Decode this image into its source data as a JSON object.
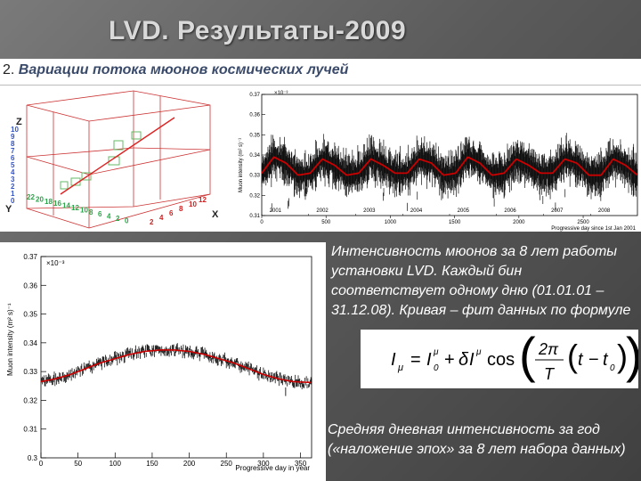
{
  "slide": {
    "title": "LVD. Результаты-2009",
    "subtitle_number": "2.",
    "subtitle_text": "Вариации потока мюонов космических лучей"
  },
  "description": {
    "paragraph1": "Интенсивность мюонов за 8 лет работы установки LVD. Каждый бин соответствует одному дню (01.01.01 – 31.12.08). Кривая – фит данных по формуле",
    "paragraph2": "Средняя дневная интенсивность за год («наложение эпох» за 8 лет набора данных)"
  },
  "formula": {
    "lhs": "I",
    "lhs_sub": "μ",
    "equals": "=",
    "i0": "I",
    "i0_sub": "0",
    "i0_sup": "μ",
    "plus": "+",
    "delta": "δ",
    "cos": "cos",
    "two_pi": "2π",
    "T": "T",
    "t": "t",
    "minus": "−",
    "t0": "t",
    "t0_sub": "0"
  },
  "plot3d": {
    "z_label": "Z",
    "y_label": "Y",
    "x_label": "X",
    "z_ticks": [
      "10",
      "9",
      "8",
      "7",
      "6",
      "5",
      "4",
      "3",
      "2",
      "1",
      "0"
    ],
    "y_ticks": [
      "22",
      "20",
      "18",
      "16",
      "14",
      "12",
      "10",
      "8",
      "6",
      "4",
      "2",
      "0"
    ],
    "x_ticks": [
      "2",
      "4",
      "6",
      "8",
      "10",
      "12"
    ],
    "colors": {
      "frame": "#cc3333",
      "track": "#dd2222",
      "cell": "#66bb66",
      "axis_text_z": "#3355cc",
      "axis_text_y": "#22aa44",
      "axis_text_x": "#cc2222"
    }
  },
  "chart_data": [
    {
      "type": "line",
      "x_kind": "year_ticks",
      "title": "",
      "xlabel": "Progressive day since 1st Jan 2001",
      "ylabel": "Muon intensity (m² s)⁻¹",
      "y_multiplier": "×10⁻³",
      "ylim": [
        0.31,
        0.37
      ],
      "y_ticks": [
        "0.37",
        "0.36",
        "0.35",
        "0.34",
        "0.33",
        "0.32",
        "0.31"
      ],
      "y_tick_values": [
        0.37,
        0.36,
        0.35,
        0.34,
        0.33,
        0.32,
        0.31
      ],
      "year_labels": [
        "2001",
        "2002",
        "2003",
        "2004",
        "2005",
        "2006",
        "2007",
        "2008"
      ],
      "day_ticks": [
        "0",
        "500",
        "1000",
        "1500",
        "2000",
        "2500"
      ],
      "xlim": [
        0,
        2922
      ],
      "grid": false,
      "series": [
        {
          "role": "data",
          "color": "#000000",
          "note_values": "daily muon intensity, 2001-2008 (~2922 bins)",
          "values": [
            0.331,
            0.339,
            0.336,
            0.33,
            0.331,
            0.338,
            0.335,
            0.33,
            0.331,
            0.338,
            0.335,
            0.331,
            0.331,
            0.338,
            0.336,
            0.33,
            0.331,
            0.339,
            0.336,
            0.33,
            0.331,
            0.338,
            0.335,
            0.331,
            0.331,
            0.338,
            0.336,
            0.33,
            0.33,
            0.338,
            0.335,
            0.33
          ]
        },
        {
          "role": "fit",
          "color": "#cc0000",
          "values": [
            0.331,
            0.339,
            0.336,
            0.33,
            0.331,
            0.338,
            0.335,
            0.33,
            0.331,
            0.338,
            0.335,
            0.331,
            0.331,
            0.338,
            0.336,
            0.33,
            0.331,
            0.339,
            0.336,
            0.33,
            0.331,
            0.338,
            0.335,
            0.331,
            0.331,
            0.338,
            0.336,
            0.33,
            0.33,
            0.338,
            0.335,
            0.33
          ]
        }
      ]
    },
    {
      "type": "line",
      "title": "",
      "xlabel": "Progressive day in year",
      "ylabel": "Muon intensity (m² s)⁻¹",
      "y_multiplier": "×10⁻³",
      "xlim": [
        0,
        365
      ],
      "ylim": [
        0.3,
        0.37
      ],
      "x_ticks": [
        "0",
        "50",
        "100",
        "150",
        "200",
        "250",
        "300",
        "350"
      ],
      "x_tick_values": [
        0,
        50,
        100,
        150,
        200,
        250,
        300,
        350
      ],
      "y_ticks": [
        "0.37",
        "0.36",
        "0.35",
        "0.34",
        "0.33",
        "0.32",
        "0.31",
        "0.3"
      ],
      "y_tick_values": [
        0.37,
        0.36,
        0.35,
        0.34,
        0.33,
        0.32,
        0.31,
        0.3
      ],
      "grid": false,
      "series": [
        {
          "role": "data",
          "color": "#000000",
          "x": [
            0,
            20,
            40,
            60,
            80,
            100,
            120,
            140,
            160,
            180,
            200,
            220,
            240,
            260,
            280,
            300,
            320,
            340,
            360
          ],
          "values": [
            0.326,
            0.327,
            0.329,
            0.331,
            0.333,
            0.335,
            0.336,
            0.337,
            0.3375,
            0.3375,
            0.337,
            0.3365,
            0.335,
            0.333,
            0.331,
            0.329,
            0.327,
            0.326,
            0.326
          ]
        },
        {
          "role": "fit",
          "color": "#cc0000",
          "x": [
            0,
            20,
            40,
            60,
            80,
            100,
            120,
            140,
            160,
            180,
            200,
            220,
            240,
            260,
            280,
            300,
            320,
            340,
            365
          ],
          "values": [
            0.3265,
            0.3275,
            0.329,
            0.331,
            0.333,
            0.3345,
            0.336,
            0.337,
            0.3375,
            0.3375,
            0.337,
            0.336,
            0.3345,
            0.333,
            0.331,
            0.329,
            0.3275,
            0.3265,
            0.3262
          ]
        }
      ]
    }
  ]
}
